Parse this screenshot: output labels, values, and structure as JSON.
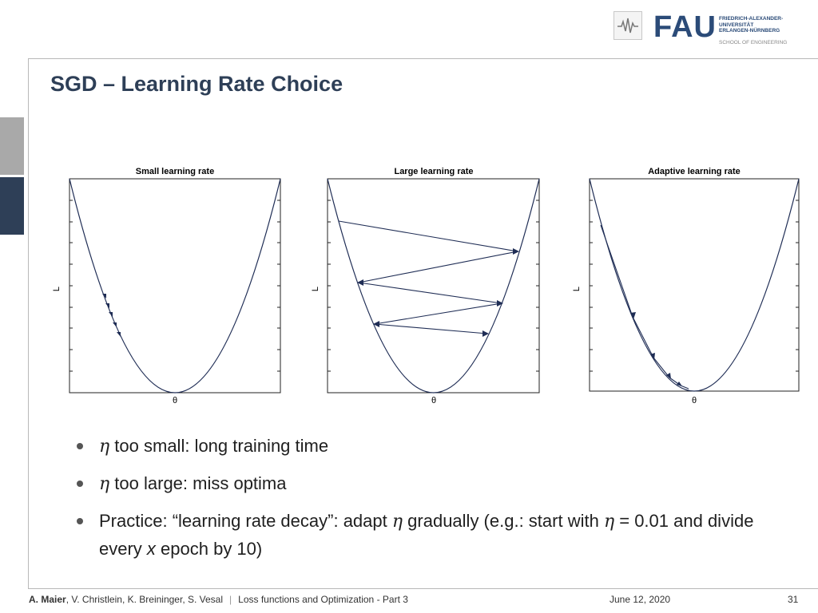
{
  "title": "SGD – Learning Rate Choice",
  "logo": {
    "wordmark": "FAU",
    "university_lines": [
      "FRIEDRICH-ALEXANDER-",
      "UNIVERSITÄT",
      "ERLANGEN-NÜRNBERG"
    ],
    "school": "SCHOOL OF ENGINEERING"
  },
  "plots": [
    {
      "title": "Small learning rate",
      "xlabel": "θ",
      "ylabel": "L"
    },
    {
      "title": "Large learning rate",
      "xlabel": "θ",
      "ylabel": "L"
    },
    {
      "title": "Adaptive learning rate",
      "xlabel": "θ",
      "ylabel": "L"
    }
  ],
  "bullets": {
    "b1_eta": "η",
    "b1_text": " too small: long training time",
    "b2_eta": "η",
    "b2_text": " too large: miss optima",
    "b3_a": "Practice: “learning rate decay”: adapt ",
    "b3_eta1": "η",
    "b3_b": " gradually (e.g.: start with ",
    "b3_eta2": "η",
    "b3_c": " = 0.01 and divide every ",
    "b3_x": "x",
    "b3_d": " epoch by 10)"
  },
  "footer": {
    "author_bold": "A. Maier",
    "authors_rest": ", V. Christlein, K. Breininger, S. Vesal",
    "separator": "|",
    "lecture": "Loss functions and Optimization - Part 3",
    "date": "June 12, 2020",
    "page": "31"
  }
}
